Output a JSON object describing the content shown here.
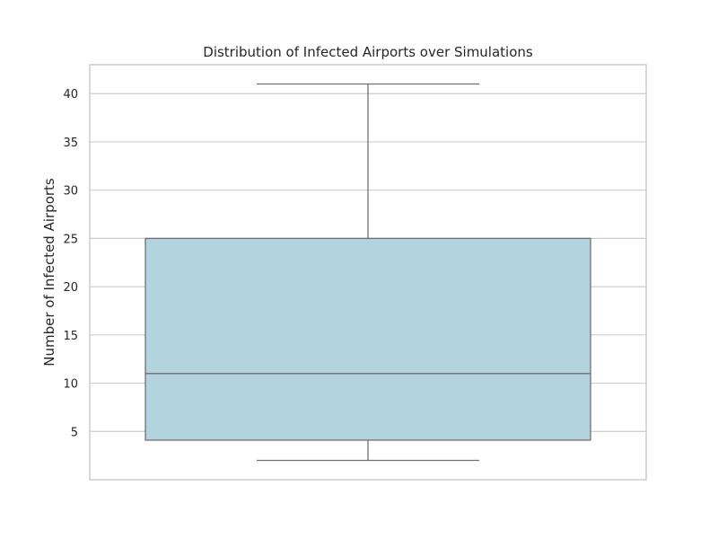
{
  "chart_data": {
    "type": "boxplot",
    "title": "Distribution of Infected Airports over Simulations",
    "xlabel": "",
    "ylabel": "Number of Infected Airports",
    "ylim": [
      0,
      43
    ],
    "yticks": [
      5,
      10,
      15,
      20,
      25,
      30,
      35,
      40
    ],
    "grid": true,
    "box": {
      "whisker_low": 2,
      "q1": 4.1,
      "median": 11,
      "q3": 25,
      "whisker_high": 41
    },
    "colors": {
      "box_fill": "#b3d4df",
      "box_edge": "#707070",
      "grid": "#cccccc",
      "frame": "#cccccc"
    }
  }
}
